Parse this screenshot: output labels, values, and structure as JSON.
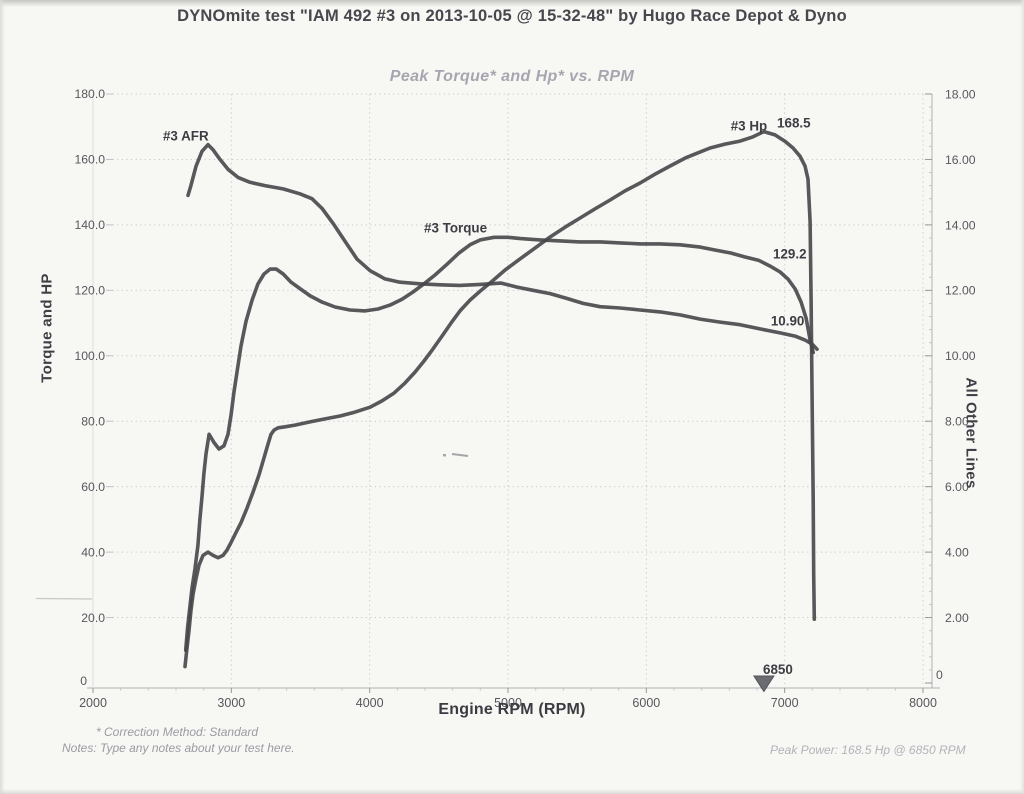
{
  "page": {
    "title": "DYNOmite test \"IAM 492 #3 on 2013-10-05 @ 15-32-48\" by Hugo Race Depot & Dyno"
  },
  "footer": {
    "correction_method": "* Correction Method: Standard",
    "notes": "Notes: Type any notes about your test here.",
    "peak_power": "Peak Power: 168.5 Hp @ 6850 RPM"
  },
  "colors": {
    "curve": "#46464c",
    "grid": "#c8c8cc",
    "axis": "#b0b0b4",
    "axis_faint": "#dcdcde",
    "tick_major": "#97979c",
    "tick_minor": "#c4c4c8",
    "text_axis": "#57575d",
    "text_label": "#3d3d44",
    "marker_fill": "#6b6b72",
    "marker_stroke": "#53535a"
  },
  "chart_data": {
    "type": "line",
    "title": "Peak Torque* and Hp* vs. RPM",
    "xlabel": "Engine RPM (RPM)",
    "y_left_label": "Torque and HP",
    "y_right_label": "All Other Lines",
    "grid": "dotted",
    "x_range": [
      2000,
      8000
    ],
    "x_ticks": [
      2000,
      3000,
      4000,
      5000,
      6000,
      7000,
      8000
    ],
    "x_tick_labels": [
      "2000",
      "3000",
      "4000",
      "5000",
      "6000",
      "7000",
      "8000"
    ],
    "y_left": {
      "range": [
        0,
        180
      ],
      "tick_step": 20,
      "tick_labels": [
        "0",
        "20.0",
        "40.0",
        "60.0",
        "80.0",
        "100.0",
        "120.0",
        "140.0",
        "160.0",
        "180.0"
      ]
    },
    "y_right": {
      "range": [
        0,
        18
      ],
      "tick_step": 2,
      "tick_labels": [
        "0",
        "2.00",
        "4.00",
        "6.00",
        "8.00",
        "10.00",
        "12.00",
        "14.00",
        "16.00",
        "18.00"
      ]
    },
    "series": [
      {
        "name": "#3 Torque",
        "axis": "left",
        "points": [
          [
            2670,
            10
          ],
          [
            2684,
            17
          ],
          [
            2700,
            23
          ],
          [
            2716,
            29
          ],
          [
            2737,
            35
          ],
          [
            2758,
            42
          ],
          [
            2773,
            50
          ],
          [
            2788,
            57
          ],
          [
            2802,
            64
          ],
          [
            2817,
            70
          ],
          [
            2839,
            76
          ],
          [
            2875,
            73.5
          ],
          [
            2911,
            71.5
          ],
          [
            2947,
            72.5
          ],
          [
            2976,
            76
          ],
          [
            2998,
            82
          ],
          [
            3019,
            89
          ],
          [
            3041,
            95
          ],
          [
            3070,
            103
          ],
          [
            3106,
            110.5
          ],
          [
            3150,
            117
          ],
          [
            3193,
            122
          ],
          [
            3236,
            125
          ],
          [
            3280,
            126.5
          ],
          [
            3325,
            126.5
          ],
          [
            3375,
            125
          ],
          [
            3432,
            122.5
          ],
          [
            3500,
            120.4
          ],
          [
            3570,
            118.3
          ],
          [
            3656,
            116.4
          ],
          [
            3750,
            114.9
          ],
          [
            3858,
            114
          ],
          [
            3966,
            113.7
          ],
          [
            4060,
            114.3
          ],
          [
            4147,
            115.5
          ],
          [
            4234,
            117.3
          ],
          [
            4313,
            119.5
          ],
          [
            4393,
            122
          ],
          [
            4472,
            124.7
          ],
          [
            4560,
            128
          ],
          [
            4646,
            131.4
          ],
          [
            4725,
            133.9
          ],
          [
            4800,
            135.4
          ],
          [
            4900,
            136.2
          ],
          [
            5000,
            136.2
          ],
          [
            5090,
            135.8
          ],
          [
            5230,
            135.4
          ],
          [
            5380,
            135.1
          ],
          [
            5520,
            134.8
          ],
          [
            5670,
            134.8
          ],
          [
            5810,
            134.5
          ],
          [
            5960,
            134.2
          ],
          [
            6100,
            134.2
          ],
          [
            6244,
            133.9
          ],
          [
            6390,
            133.2
          ],
          [
            6500,
            132.3
          ],
          [
            6610,
            131.4
          ],
          [
            6714,
            130.2
          ],
          [
            6810,
            129.2
          ],
          [
            6895,
            127.4
          ],
          [
            6967,
            125.6
          ],
          [
            7025,
            123.4
          ],
          [
            7076,
            120.4
          ],
          [
            7119,
            116.4
          ],
          [
            7155,
            111.5
          ],
          [
            7184,
            104.8
          ],
          [
            7206,
            101
          ]
        ]
      },
      {
        "name": "#3 Hp",
        "axis": "left",
        "points": [
          [
            2665,
            5
          ],
          [
            2680,
            11
          ],
          [
            2694,
            16
          ],
          [
            2708,
            22
          ],
          [
            2723,
            27
          ],
          [
            2745,
            32
          ],
          [
            2766,
            36
          ],
          [
            2795,
            39
          ],
          [
            2831,
            40
          ],
          [
            2868,
            39
          ],
          [
            2904,
            38.3
          ],
          [
            2940,
            39
          ],
          [
            2969,
            40.6
          ],
          [
            2998,
            43
          ],
          [
            3034,
            46
          ],
          [
            3070,
            49
          ],
          [
            3114,
            53.5
          ],
          [
            3157,
            58.4
          ],
          [
            3200,
            63.6
          ],
          [
            3236,
            68.8
          ],
          [
            3265,
            73
          ],
          [
            3287,
            76
          ],
          [
            3309,
            77.3
          ],
          [
            3338,
            78
          ],
          [
            3388,
            78.3
          ],
          [
            3460,
            78.8
          ],
          [
            3569,
            79.8
          ],
          [
            3677,
            80.7
          ],
          [
            3786,
            81.6
          ],
          [
            3894,
            82.8
          ],
          [
            4003,
            84.3
          ],
          [
            4089,
            86.2
          ],
          [
            4176,
            88.6
          ],
          [
            4256,
            91.7
          ],
          [
            4328,
            95
          ],
          [
            4393,
            98.4
          ],
          [
            4458,
            102.1
          ],
          [
            4523,
            106
          ],
          [
            4588,
            110
          ],
          [
            4653,
            113.7
          ],
          [
            4725,
            117
          ],
          [
            4800,
            119.8
          ],
          [
            4885,
            122.8
          ],
          [
            4979,
            126.2
          ],
          [
            5087,
            129.6
          ],
          [
            5195,
            132.9
          ],
          [
            5304,
            136.3
          ],
          [
            5412,
            139.3
          ],
          [
            5521,
            142.1
          ],
          [
            5629,
            144.9
          ],
          [
            5738,
            147.6
          ],
          [
            5846,
            150.4
          ],
          [
            5955,
            152.8
          ],
          [
            6063,
            155.5
          ],
          [
            6172,
            158
          ],
          [
            6280,
            160.4
          ],
          [
            6367,
            161.9
          ],
          [
            6461,
            163.5
          ],
          [
            6569,
            164.7
          ],
          [
            6678,
            165.6
          ],
          [
            6764,
            166.8
          ],
          [
            6850,
            168.5
          ],
          [
            6930,
            167.5
          ],
          [
            7003,
            165.5
          ],
          [
            7060,
            163.5
          ],
          [
            7111,
            161
          ],
          [
            7147,
            158
          ],
          [
            7169,
            154
          ],
          [
            7184,
            141
          ],
          [
            7191,
            117
          ],
          [
            7198,
            87
          ],
          [
            7206,
            56
          ],
          [
            7210,
            33
          ],
          [
            7214,
            19.5
          ]
        ]
      },
      {
        "name": "#3 AFR",
        "axis": "right",
        "points": [
          [
            2687,
            14.9
          ],
          [
            2708,
            15.2
          ],
          [
            2745,
            15.8
          ],
          [
            2788,
            16.25
          ],
          [
            2831,
            16.45
          ],
          [
            2867,
            16.3
          ],
          [
            2918,
            16
          ],
          [
            2976,
            15.7
          ],
          [
            3048,
            15.45
          ],
          [
            3135,
            15.3
          ],
          [
            3243,
            15.2
          ],
          [
            3374,
            15.1
          ],
          [
            3496,
            14.95
          ],
          [
            3583,
            14.8
          ],
          [
            3656,
            14.5
          ],
          [
            3735,
            14.05
          ],
          [
            3822,
            13.5
          ],
          [
            3909,
            12.95
          ],
          [
            4003,
            12.6
          ],
          [
            4111,
            12.35
          ],
          [
            4219,
            12.25
          ],
          [
            4364,
            12.2
          ],
          [
            4509,
            12.17
          ],
          [
            4650,
            12.15
          ],
          [
            4800,
            12.18
          ],
          [
            4950,
            12.22
          ],
          [
            5066,
            12.1
          ],
          [
            5181,
            12
          ],
          [
            5304,
            11.9
          ],
          [
            5427,
            11.75
          ],
          [
            5543,
            11.6
          ],
          [
            5666,
            11.5
          ],
          [
            5810,
            11.46
          ],
          [
            5955,
            11.4
          ],
          [
            6099,
            11.34
          ],
          [
            6244,
            11.25
          ],
          [
            6389,
            11.12
          ],
          [
            6533,
            11.03
          ],
          [
            6678,
            10.95
          ],
          [
            6822,
            10.82
          ],
          [
            6967,
            10.7
          ],
          [
            7075,
            10.6
          ],
          [
            7148,
            10.48
          ],
          [
            7198,
            10.36
          ],
          [
            7234,
            10.2
          ]
        ]
      }
    ],
    "annotations": [
      {
        "text": "#3 AFR",
        "rpm": 2506,
        "value": 16.72,
        "axis": "right"
      },
      {
        "text": "#3 Torque",
        "rpm": 4393,
        "value": 139.0,
        "axis": "left"
      },
      {
        "text": "#3 Hp",
        "rpm": 6610,
        "value": 170.2,
        "axis": "left"
      },
      {
        "text": "168.5",
        "rpm": 6945,
        "value": 171.1,
        "axis": "left"
      },
      {
        "text": "129.2",
        "rpm": 6916,
        "value": 131.1,
        "axis": "left"
      },
      {
        "text": "10.90",
        "rpm": 6900,
        "value": 11.06,
        "axis": "right"
      }
    ],
    "peak_marker": {
      "label": "6850",
      "rpm": 6850
    }
  }
}
